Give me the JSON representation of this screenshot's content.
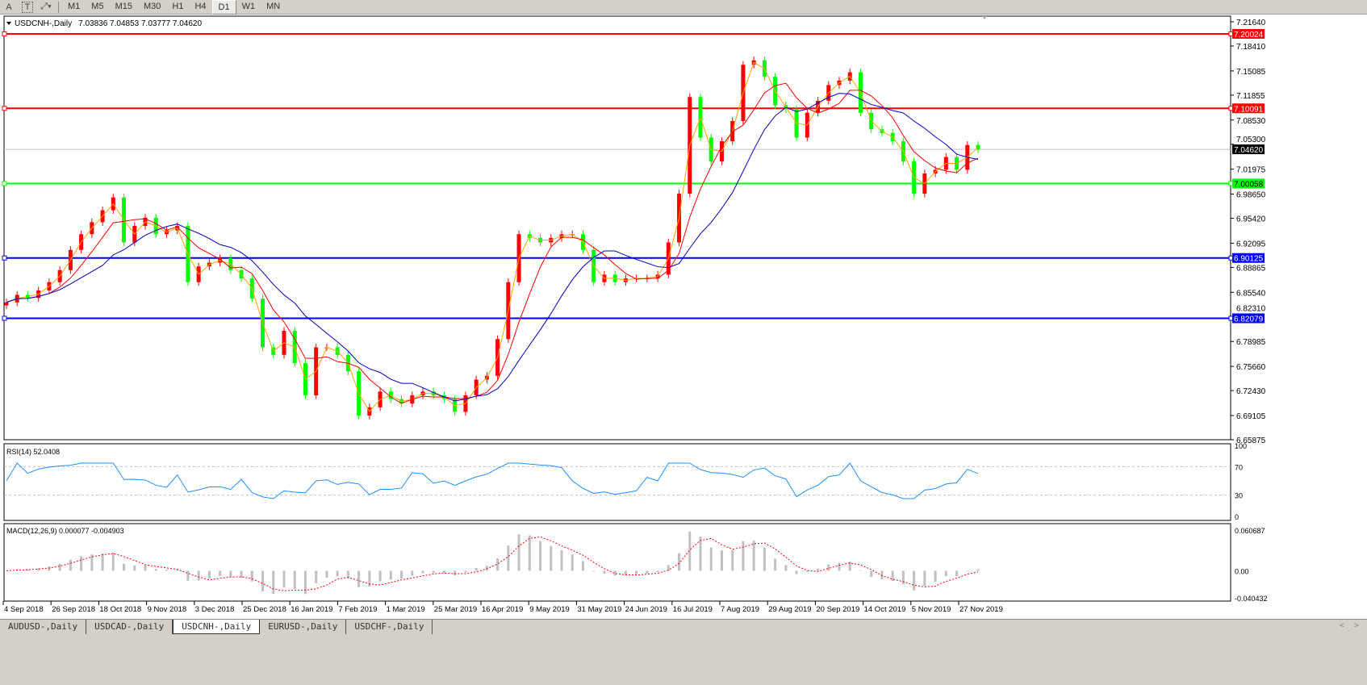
{
  "toolbar": {
    "icons": [
      "text-a-icon",
      "text-label-icon",
      "arrows-icon"
    ],
    "a_label": "A",
    "t_label": "T",
    "timeframes": [
      "M1",
      "M5",
      "M15",
      "M30",
      "H1",
      "H4",
      "D1",
      "W1",
      "MN"
    ],
    "selected": "D1"
  },
  "chart": {
    "symbol_title": "USDCNH-,Daily",
    "ohlc": "7.03836 7.04853 7.03777 7.04620",
    "price_axis": [
      "7.21640",
      "7.18410",
      "7.15085",
      "7.11855",
      "7.08530",
      "7.05300",
      "7.01975",
      "6.98650",
      "6.95420",
      "6.92095",
      "6.88865",
      "6.85540",
      "6.82310",
      "6.78985",
      "6.75660",
      "6.72430",
      "6.69105",
      "6.65875"
    ],
    "price_range": [
      6.65875,
      7.2164
    ],
    "current_price": "7.04620",
    "levels": [
      {
        "value": "7.20024",
        "color": "#ff0000"
      },
      {
        "value": "7.10091",
        "color": "#ff0000"
      },
      {
        "value": "7.00058",
        "color": "#00ff00"
      },
      {
        "value": "6.90125",
        "color": "#0000ff"
      },
      {
        "value": "6.82079",
        "color": "#0000ff"
      }
    ],
    "colors": {
      "bull": "#ff0000",
      "bear": "#00ff00",
      "ma_fast": "#ffa500",
      "ma_mid": "#ff0000",
      "ma_slow": "#0000c0",
      "rsi": "#1e90ff",
      "macd_hist": "#c0c0c0",
      "macd_signal": "#ff0000"
    },
    "date_labels": [
      "4 Sep 2018",
      "26 Sep 2018",
      "18 Oct 2018",
      "9 Nov 2018",
      "3 Dec 2018",
      "25 Dec 2018",
      "16 Jan 2019",
      "7 Feb 2019",
      "1 Mar 2019",
      "25 Mar 2019",
      "16 Apr 2019",
      "9 May 2019",
      "31 May 2019",
      "24 Jun 2019",
      "16 Jul 2019",
      "7 Aug 2019",
      "29 Aug 2019",
      "20 Sep 2019",
      "14 Oct 2019",
      "5 Nov 2019",
      "27 Nov 2019"
    ]
  },
  "chart_data": {
    "type": "candlestick",
    "closes": [
      6.842,
      6.852,
      6.848,
      6.858,
      6.869,
      6.885,
      6.912,
      6.933,
      6.949,
      6.965,
      6.982,
      6.922,
      6.944,
      6.955,
      6.933,
      6.938,
      6.944,
      6.869,
      6.89,
      6.895,
      6.901,
      6.885,
      6.874,
      6.847,
      6.782,
      6.772,
      6.804,
      6.761,
      6.718,
      6.782,
      6.782,
      6.772,
      6.75,
      6.691,
      6.702,
      6.723,
      6.713,
      6.707,
      6.718,
      6.723,
      6.718,
      6.713,
      6.696,
      6.718,
      6.739,
      6.744,
      6.793,
      6.869,
      6.933,
      6.928,
      6.922,
      6.928,
      6.933,
      6.933,
      6.912,
      6.869,
      6.879,
      6.869,
      6.874,
      6.874,
      6.874,
      6.879,
      6.922,
      6.987,
      7.116,
      7.062,
      7.03,
      7.057,
      7.084,
      7.159,
      7.165,
      7.143,
      7.105,
      7.1,
      7.062,
      7.095,
      7.111,
      7.132,
      7.138,
      7.149,
      7.095,
      7.073,
      7.068,
      7.057,
      7.03,
      6.987,
      7.014,
      7.019,
      7.036,
      7.019,
      7.052,
      7.046
    ]
  },
  "rsi": {
    "label": "RSI(14) 52.0408",
    "axis": [
      "100",
      "70",
      "30",
      "0"
    ]
  },
  "macd": {
    "label": "MACD(12,26,9) 0.000077 -0.004903",
    "axis": [
      "0.060687",
      "0.00",
      "-0.040432"
    ],
    "range": [
      -0.040432,
      0.060687
    ]
  },
  "tabs": [
    "AUDUSD-,Daily",
    "USDCAD-,Daily",
    "USDCNH-,Daily",
    "EURUSD-,Daily",
    "USDCHF-,Daily"
  ],
  "selected_tab": "USDCNH-,Daily",
  "tab_nav": {
    "prev": "<",
    "next": ">"
  }
}
